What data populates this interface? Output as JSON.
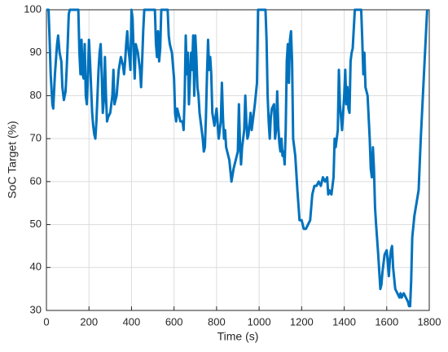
{
  "chart_data": {
    "type": "line",
    "xlabel": "Time (s)",
    "ylabel": "SoC Target (%)",
    "color": "#0072bd",
    "grid": true,
    "xlim": [
      0,
      1800
    ],
    "xticks": [
      0,
      200,
      400,
      600,
      800,
      1000,
      1200,
      1400,
      1600,
      1800
    ],
    "ylim": [
      30,
      100
    ],
    "yticks": [
      30,
      40,
      50,
      60,
      70,
      80,
      90,
      100
    ],
    "x": [
      0,
      10,
      15,
      20,
      28,
      32,
      40,
      50,
      55,
      62,
      70,
      75,
      82,
      90,
      95,
      100,
      105,
      110,
      150,
      155,
      160,
      165,
      170,
      175,
      180,
      185,
      190,
      195,
      200,
      205,
      210,
      215,
      220,
      225,
      230,
      235,
      240,
      245,
      250,
      255,
      260,
      265,
      270,
      275,
      280,
      285,
      290,
      300,
      310,
      315,
      320,
      330,
      340,
      350,
      360,
      365,
      370,
      375,
      380,
      385,
      390,
      395,
      400,
      405,
      410,
      415,
      420,
      430,
      440,
      445,
      450,
      455,
      460,
      510,
      515,
      520,
      525,
      530,
      535,
      540,
      570,
      575,
      580,
      590,
      600,
      605,
      610,
      615,
      620,
      630,
      640,
      645,
      650,
      655,
      660,
      665,
      670,
      675,
      680,
      685,
      690,
      695,
      700,
      705,
      710,
      715,
      720,
      725,
      730,
      735,
      740,
      745,
      750,
      755,
      760,
      765,
      770,
      775,
      780,
      790,
      800,
      810,
      820,
      825,
      830,
      835,
      840,
      845,
      850,
      860,
      870,
      880,
      890,
      900,
      905,
      910,
      915,
      920,
      930,
      935,
      940,
      945,
      950,
      960,
      965,
      970,
      980,
      990,
      995,
      1030,
      1035,
      1040,
      1045,
      1050,
      1055,
      1060,
      1070,
      1075,
      1080,
      1085,
      1090,
      1095,
      1100,
      1105,
      1110,
      1115,
      1120,
      1125,
      1130,
      1135,
      1140,
      1145,
      1150,
      1155,
      1160,
      1170,
      1180,
      1190,
      1200,
      1210,
      1220,
      1230,
      1240,
      1250,
      1260,
      1270,
      1280,
      1290,
      1300,
      1310,
      1320,
      1325,
      1330,
      1340,
      1350,
      1355,
      1360,
      1370,
      1375,
      1380,
      1385,
      1390,
      1400,
      1405,
      1410,
      1415,
      1420,
      1425,
      1430,
      1435,
      1440,
      1450,
      1480,
      1485,
      1490,
      1495,
      1500,
      1510,
      1520,
      1525,
      1530,
      1535,
      1540,
      1545,
      1550,
      1560,
      1570,
      1575,
      1580,
      1590,
      1600,
      1610,
      1615,
      1620,
      1625,
      1630,
      1640,
      1650,
      1660,
      1665,
      1670,
      1680,
      1690,
      1700,
      1705,
      1710,
      1715,
      1720,
      1730,
      1740,
      1750,
      1760,
      1770,
      1780,
      1790
    ],
    "values": [
      100,
      100,
      93,
      85,
      78,
      77,
      85,
      92,
      94,
      90,
      88,
      82,
      79,
      81,
      86,
      92,
      99,
      100,
      100,
      90,
      85,
      93,
      85,
      84,
      92,
      80,
      78,
      85,
      93,
      88,
      82,
      76,
      73,
      71,
      70,
      74,
      80,
      86,
      90,
      92,
      85,
      76,
      79,
      89,
      80,
      74,
      75,
      76,
      80,
      86,
      78,
      80,
      86,
      89,
      87,
      85,
      88,
      92,
      95,
      91,
      89,
      86,
      100,
      98,
      90,
      84,
      92,
      90,
      86,
      82,
      88,
      95,
      100,
      100,
      92,
      89,
      95,
      88,
      91,
      100,
      100,
      94,
      92,
      90,
      84,
      76,
      74,
      77,
      76,
      74,
      74,
      72,
      80,
      94,
      85,
      90,
      78,
      84,
      90,
      86,
      94,
      80,
      94,
      89,
      82,
      80,
      76,
      74,
      72,
      70,
      67,
      68,
      75,
      85,
      93,
      86,
      89,
      85,
      76,
      73,
      77,
      70,
      74,
      83,
      75,
      70,
      72,
      68,
      67,
      65,
      60,
      63,
      65,
      67,
      78,
      69,
      64,
      68,
      72,
      80,
      74,
      70,
      71,
      76,
      72,
      74,
      78,
      83,
      100,
      100,
      93,
      80,
      74,
      70,
      75,
      77,
      78,
      70,
      72,
      81,
      73,
      69,
      67,
      70,
      66,
      67,
      64,
      72,
      88,
      92,
      83,
      93,
      95,
      88,
      70,
      66,
      58,
      51,
      51,
      49,
      49,
      50,
      51,
      57,
      59,
      59,
      60,
      59,
      61,
      60,
      61,
      57,
      58,
      57,
      61,
      70,
      68,
      72,
      86,
      78,
      75,
      72,
      80,
      86,
      78,
      82,
      77,
      76,
      88,
      90,
      91,
      100,
      100,
      93,
      85,
      90,
      82,
      80,
      70,
      63,
      61,
      68,
      63,
      54,
      50,
      43,
      35,
      36,
      39,
      43,
      44,
      38,
      42,
      44,
      45,
      40,
      35,
      34,
      33,
      34,
      33,
      34,
      33,
      32,
      31,
      31,
      37,
      47,
      52,
      55,
      58,
      70,
      80,
      90,
      100
    ]
  }
}
